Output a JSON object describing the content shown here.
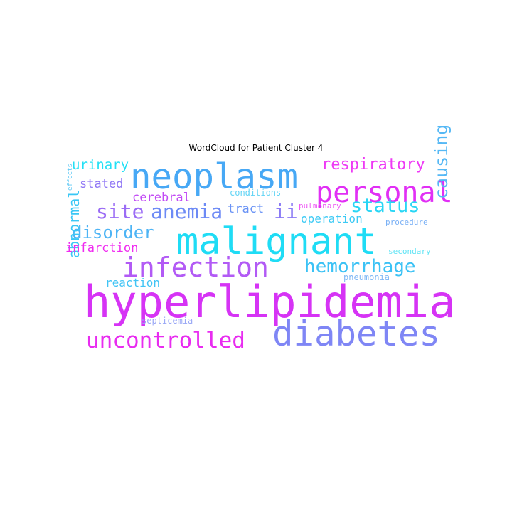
{
  "chart_data": {
    "type": "wordcloud",
    "title": "WordCloud for Patient Cluster 4",
    "words": [
      {
        "text": "hyperlipidemia",
        "color": "#d633f5"
      },
      {
        "text": "malignant",
        "color": "#1fdcf5"
      },
      {
        "text": "neoplasm",
        "color": "#47a8f5"
      },
      {
        "text": "diabetes",
        "color": "#7f86f5"
      },
      {
        "text": "personal",
        "color": "#e12ff5"
      },
      {
        "text": "infection",
        "color": "#b25af5"
      },
      {
        "text": "uncontrolled",
        "color": "#e82cf0"
      },
      {
        "text": "hemorrhage",
        "color": "#3bc2f5"
      },
      {
        "text": "status",
        "color": "#28d6f5"
      },
      {
        "text": "anemia",
        "color": "#6d8af5"
      },
      {
        "text": "site",
        "color": "#9b6cf5"
      },
      {
        "text": "disorder",
        "color": "#4db4f5"
      },
      {
        "text": "causing",
        "color": "#55b8f5"
      },
      {
        "text": "respiratory",
        "color": "#ee3af5"
      },
      {
        "text": "ii",
        "color": "#8a7af5"
      },
      {
        "text": "urinary",
        "color": "#22e0f5"
      },
      {
        "text": "abnormal",
        "color": "#3ac7f5"
      },
      {
        "text": "cerebral",
        "color": "#c24af5"
      },
      {
        "text": "stated",
        "color": "#8f76f5"
      },
      {
        "text": "infarction",
        "color": "#f02bf0"
      },
      {
        "text": "tract",
        "color": "#6a93f5"
      },
      {
        "text": "operation",
        "color": "#3ccaf5"
      },
      {
        "text": "reaction",
        "color": "#41c4f5"
      },
      {
        "text": "conditions",
        "color": "#62d4f5"
      },
      {
        "text": "pulmonary",
        "color": "#ee5af5"
      },
      {
        "text": "procedure",
        "color": "#7ab0f5"
      },
      {
        "text": "pneumonia",
        "color": "#80b8f5"
      },
      {
        "text": "secondary",
        "color": "#62e4f5"
      },
      {
        "text": "septicemia",
        "color": "#9aa8f5"
      },
      {
        "text": "effects",
        "color": "#5ec8f5"
      }
    ]
  }
}
